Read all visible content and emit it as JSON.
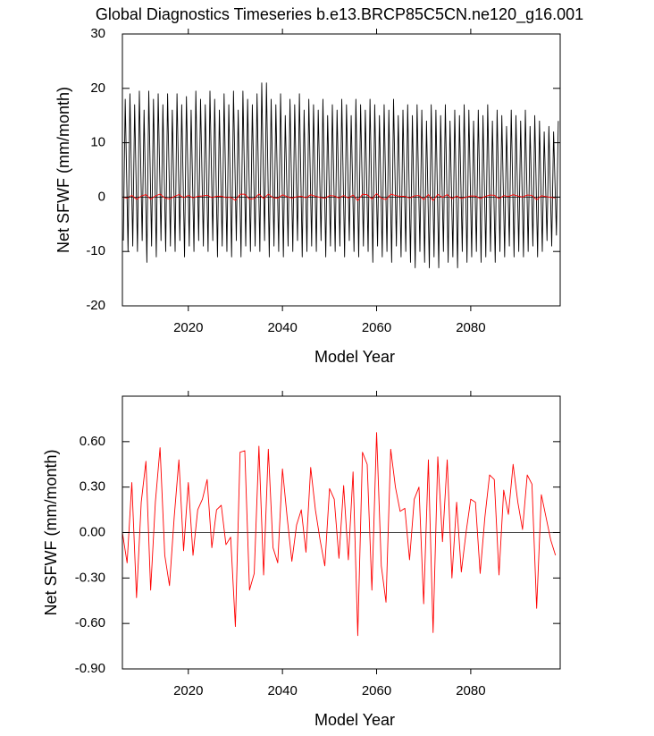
{
  "chart_data": [
    {
      "type": "line",
      "title": "Global Diagnostics Timeseries b.e13.BRCP85C5CN.ne120_g16.001",
      "xlabel": "Model Year",
      "ylabel": "Net SFWF (mm/month)",
      "xlim": [
        2006,
        2099
      ],
      "ylim": [
        -20,
        30
      ],
      "xticks": [
        2020,
        2040,
        2060,
        2080
      ],
      "yticks": [
        -20,
        -10,
        0,
        10,
        20,
        30
      ],
      "series": [
        {
          "color": "#000000",
          "x": [
            2006.2,
            2006.6,
            2007.2,
            2007.6,
            2008.2,
            2008.6,
            2009.2,
            2009.6,
            2010.2,
            2010.6,
            2011.2,
            2011.6,
            2012.2,
            2012.6,
            2013.2,
            2013.6,
            2014.2,
            2014.6,
            2015.2,
            2015.6,
            2016.2,
            2016.6,
            2017.2,
            2017.6,
            2018.2,
            2018.6,
            2019.2,
            2019.6,
            2020.2,
            2020.6,
            2021.2,
            2021.6,
            2022.2,
            2022.6,
            2023.2,
            2023.6,
            2024.2,
            2024.6,
            2025.2,
            2025.6,
            2026.2,
            2026.6,
            2027.2,
            2027.6,
            2028.2,
            2028.6,
            2029.2,
            2029.6,
            2030.2,
            2030.6,
            2031.2,
            2031.6,
            2032.2,
            2032.6,
            2033.2,
            2033.6,
            2034.2,
            2034.6,
            2035.2,
            2035.6,
            2036.2,
            2036.6,
            2037.2,
            2037.6,
            2038.2,
            2038.6,
            2039.2,
            2039.6,
            2040.2,
            2040.6,
            2041.2,
            2041.6,
            2042.2,
            2042.6,
            2043.2,
            2043.6,
            2044.2,
            2044.6,
            2045.2,
            2045.6,
            2046.2,
            2046.6,
            2047.2,
            2047.6,
            2048.2,
            2048.6,
            2049.2,
            2049.6,
            2050.2,
            2050.6,
            2051.2,
            2051.6,
            2052.2,
            2052.6,
            2053.2,
            2053.6,
            2054.2,
            2054.6,
            2055.2,
            2055.6,
            2056.2,
            2056.6,
            2057.2,
            2057.6,
            2058.2,
            2058.6,
            2059.2,
            2059.6,
            2060.2,
            2060.6,
            2061.2,
            2061.6,
            2062.2,
            2062.6,
            2063.2,
            2063.6,
            2064.2,
            2064.6,
            2065.2,
            2065.6,
            2066.2,
            2066.6,
            2067.2,
            2067.6,
            2068.2,
            2068.6,
            2069.2,
            2069.6,
            2070.2,
            2070.6,
            2071.2,
            2071.6,
            2072.2,
            2072.6,
            2073.2,
            2073.6,
            2074.2,
            2074.6,
            2075.2,
            2075.6,
            2076.2,
            2076.6,
            2077.2,
            2077.6,
            2078.2,
            2078.6,
            2079.2,
            2079.6,
            2080.2,
            2080.6,
            2081.2,
            2081.6,
            2082.2,
            2082.6,
            2083.2,
            2083.6,
            2084.2,
            2084.6,
            2085.2,
            2085.6,
            2086.2,
            2086.6,
            2087.2,
            2087.6,
            2088.2,
            2088.6,
            2089.2,
            2089.6,
            2090.2,
            2090.6,
            2091.2,
            2091.6,
            2092.2,
            2092.6,
            2093.2,
            2093.6,
            2094.2,
            2094.6,
            2095.2,
            2095.6,
            2096.2,
            2096.6,
            2097.2,
            2097.6,
            2098.2,
            2098.6
          ],
          "values": [
            -8,
            18,
            -10,
            19,
            -9,
            17,
            -10,
            19.5,
            -8,
            16,
            -12,
            19.5,
            -9,
            18,
            -11,
            19,
            -8,
            17,
            -10,
            19,
            -9,
            16,
            -10,
            19,
            -8,
            17,
            -11,
            18.5,
            -9,
            16,
            -10,
            19.5,
            -8,
            18,
            -9,
            17,
            -10,
            19.5,
            -8,
            18,
            -11,
            16,
            -9,
            19,
            -10,
            17,
            -11,
            19.5,
            -8,
            16,
            -11,
            19.5,
            -9,
            18,
            -10,
            17,
            -9,
            19,
            -10,
            21,
            -8,
            21,
            -11,
            18,
            -9,
            17,
            -10,
            19,
            -11,
            15,
            -9,
            18,
            -10,
            17,
            -8,
            19,
            -11,
            16,
            -10,
            18,
            -9,
            17,
            -10,
            16,
            -8,
            18,
            -11,
            15,
            -9,
            17,
            -10,
            16,
            -9,
            18,
            -11,
            17,
            -8,
            15,
            -10,
            18,
            -11,
            17,
            -9,
            16,
            -10,
            18,
            -12,
            17,
            -9,
            15,
            -11,
            17,
            -10,
            16,
            -12,
            18,
            -9,
            15,
            -11,
            16,
            -10,
            17,
            -12,
            15,
            -13,
            17,
            -10,
            16,
            -12,
            14,
            -13,
            17,
            -11,
            16,
            -13,
            15,
            -10,
            17,
            -12,
            14,
            -11,
            16,
            -13,
            15,
            -10,
            17,
            -12,
            16,
            -11,
            14,
            -10,
            16,
            -12,
            15,
            -11,
            17,
            -10,
            14,
            -12,
            16,
            -10,
            15,
            -11,
            13,
            -9,
            16,
            -11,
            15,
            -10,
            14,
            -11,
            16,
            -10,
            13,
            -9,
            15,
            -11,
            14,
            -10,
            12,
            -8,
            13,
            -9,
            12,
            -7,
            14
          ]
        },
        {
          "color": "#ff0000",
          "x": [
            2006,
            2007,
            2008,
            2009,
            2010,
            2011,
            2012,
            2013,
            2014,
            2015,
            2016,
            2017,
            2018,
            2019,
            2020,
            2021,
            2022,
            2023,
            2024,
            2025,
            2026,
            2027,
            2028,
            2029,
            2030,
            2031,
            2032,
            2033,
            2034,
            2035,
            2036,
            2037,
            2038,
            2039,
            2040,
            2041,
            2042,
            2043,
            2044,
            2045,
            2046,
            2047,
            2048,
            2049,
            2050,
            2051,
            2052,
            2053,
            2054,
            2055,
            2056,
            2057,
            2058,
            2059,
            2060,
            2061,
            2062,
            2063,
            2064,
            2065,
            2066,
            2067,
            2068,
            2069,
            2070,
            2071,
            2072,
            2073,
            2074,
            2075,
            2076,
            2077,
            2078,
            2079,
            2080,
            2081,
            2082,
            2083,
            2084,
            2085,
            2086,
            2087,
            2088,
            2089,
            2090,
            2091,
            2092,
            2093,
            2094,
            2095,
            2096,
            2097,
            2098
          ],
          "values": [
            0.0,
            -0.2,
            0.33,
            -0.43,
            0.2,
            0.47,
            -0.38,
            0.2,
            0.56,
            -0.15,
            -0.35,
            0.1,
            0.48,
            -0.12,
            0.33,
            -0.15,
            0.15,
            0.22,
            0.35,
            -0.1,
            0.15,
            0.18,
            -0.08,
            -0.03,
            -0.62,
            0.53,
            0.54,
            -0.38,
            -0.27,
            0.57,
            -0.28,
            0.55,
            -0.1,
            -0.2,
            0.42,
            0.1,
            -0.19,
            0.05,
            0.15,
            -0.13,
            0.43,
            0.15,
            -0.05,
            -0.22,
            0.29,
            0.22,
            -0.17,
            0.31,
            -0.18,
            0.4,
            -0.68,
            0.53,
            0.45,
            -0.38,
            0.66,
            -0.22,
            -0.46,
            0.55,
            0.3,
            0.14,
            0.16,
            -0.18,
            0.22,
            0.3,
            -0.47,
            0.48,
            -0.66,
            0.5,
            -0.06,
            0.48,
            -0.3,
            0.2,
            -0.26,
            0.0,
            0.22,
            0.2,
            -0.27,
            0.1,
            0.38,
            0.35,
            -0.28,
            0.28,
            0.12,
            0.45,
            0.2,
            0.02,
            0.38,
            0.32,
            -0.5,
            0.25,
            0.1,
            -0.05,
            -0.15
          ]
        }
      ]
    },
    {
      "type": "line",
      "xlabel": "Model Year",
      "ylabel": "Net SFWF (mm/month)",
      "xlim": [
        2006,
        2099
      ],
      "ylim": [
        -0.9,
        0.9
      ],
      "xticks": [
        2020,
        2040,
        2060,
        2080
      ],
      "yticks": [
        {
          "value": -0.9,
          "label": "-0.90"
        },
        {
          "value": -0.6,
          "label": "-0.60"
        },
        {
          "value": -0.3,
          "label": "-0.30"
        },
        {
          "value": 0,
          "label": "0.00"
        },
        {
          "value": 0.3,
          "label": "0.30"
        },
        {
          "value": 0.6,
          "label": "0.60"
        }
      ],
      "series": [
        {
          "color": "#ff0000",
          "x": [
            2006,
            2007,
            2008,
            2009,
            2010,
            2011,
            2012,
            2013,
            2014,
            2015,
            2016,
            2017,
            2018,
            2019,
            2020,
            2021,
            2022,
            2023,
            2024,
            2025,
            2026,
            2027,
            2028,
            2029,
            2030,
            2031,
            2032,
            2033,
            2034,
            2035,
            2036,
            2037,
            2038,
            2039,
            2040,
            2041,
            2042,
            2043,
            2044,
            2045,
            2046,
            2047,
            2048,
            2049,
            2050,
            2051,
            2052,
            2053,
            2054,
            2055,
            2056,
            2057,
            2058,
            2059,
            2060,
            2061,
            2062,
            2063,
            2064,
            2065,
            2066,
            2067,
            2068,
            2069,
            2070,
            2071,
            2072,
            2073,
            2074,
            2075,
            2076,
            2077,
            2078,
            2079,
            2080,
            2081,
            2082,
            2083,
            2084,
            2085,
            2086,
            2087,
            2088,
            2089,
            2090,
            2091,
            2092,
            2093,
            2094,
            2095,
            2096,
            2097,
            2098
          ],
          "values": [
            0.0,
            -0.2,
            0.33,
            -0.43,
            0.2,
            0.47,
            -0.38,
            0.2,
            0.56,
            -0.15,
            -0.35,
            0.1,
            0.48,
            -0.12,
            0.33,
            -0.15,
            0.15,
            0.22,
            0.35,
            -0.1,
            0.15,
            0.18,
            -0.08,
            -0.03,
            -0.62,
            0.53,
            0.54,
            -0.38,
            -0.27,
            0.57,
            -0.28,
            0.55,
            -0.1,
            -0.2,
            0.42,
            0.1,
            -0.19,
            0.05,
            0.15,
            -0.13,
            0.43,
            0.15,
            -0.05,
            -0.22,
            0.29,
            0.22,
            -0.17,
            0.31,
            -0.18,
            0.4,
            -0.68,
            0.53,
            0.45,
            -0.38,
            0.66,
            -0.22,
            -0.46,
            0.55,
            0.3,
            0.14,
            0.16,
            -0.18,
            0.22,
            0.3,
            -0.47,
            0.48,
            -0.66,
            0.5,
            -0.06,
            0.48,
            -0.3,
            0.2,
            -0.26,
            0.0,
            0.22,
            0.2,
            -0.27,
            0.1,
            0.38,
            0.35,
            -0.28,
            0.28,
            0.12,
            0.45,
            0.2,
            0.02,
            0.38,
            0.32,
            -0.5,
            0.25,
            0.1,
            -0.05,
            -0.15
          ]
        }
      ]
    }
  ]
}
